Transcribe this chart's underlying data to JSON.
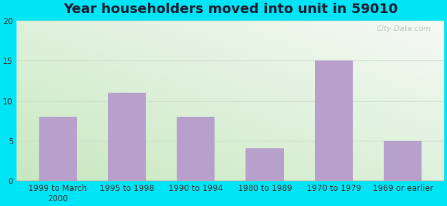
{
  "title": "Year householders moved into unit in 59010",
  "categories": [
    "1999 to March\n2000",
    "1995 to 1998",
    "1990 to 1994",
    "1980 to 1989",
    "1970 to 1979",
    "1969 or earlier"
  ],
  "values": [
    8,
    11,
    8,
    4,
    15,
    5
  ],
  "bar_color": "#b8a0cc",
  "ylim": [
    0,
    20
  ],
  "yticks": [
    0,
    5,
    10,
    15,
    20
  ],
  "background_outer": "#00e5f5",
  "grid_color": "#dddddd",
  "title_fontsize": 14,
  "tick_fontsize": 8.5,
  "watermark": "City-Data.com",
  "bg_bottom_left": "#c8e8c0",
  "bg_top_right": "#f8fdf8"
}
